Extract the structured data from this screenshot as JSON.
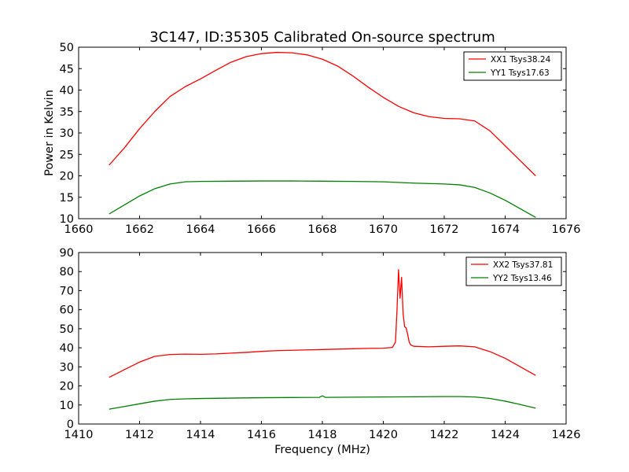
{
  "figure": {
    "title": "3C147, ID:35305 Calibrated On-source spectrum"
  },
  "chart_data": [
    {
      "type": "line",
      "title": "3C147, ID:35305 Calibrated On-source spectrum",
      "xlabel": "",
      "ylabel": "Power in Kelvin",
      "xlim": [
        1660,
        1676
      ],
      "ylim": [
        10,
        50
      ],
      "xticks": [
        1660,
        1662,
        1664,
        1666,
        1668,
        1670,
        1672,
        1674,
        1676
      ],
      "yticks": [
        10,
        15,
        20,
        25,
        30,
        35,
        40,
        45,
        50
      ],
      "legend_position": "top-right",
      "grid": false,
      "series": [
        {
          "name": "XX1 Tsys38.24",
          "color": "#ff0000",
          "x": [
            1661.0,
            1661.5,
            1662.0,
            1662.5,
            1663.0,
            1663.5,
            1664.0,
            1664.5,
            1665.0,
            1665.5,
            1666.0,
            1666.5,
            1667.0,
            1667.5,
            1668.0,
            1668.5,
            1669.0,
            1669.5,
            1670.0,
            1670.5,
            1671.0,
            1671.5,
            1672.0,
            1672.5,
            1673.0,
            1673.5,
            1674.0,
            1674.5,
            1675.0
          ],
          "y": [
            22.5,
            26.5,
            31.0,
            35.0,
            38.5,
            40.8,
            42.6,
            44.6,
            46.5,
            47.8,
            48.5,
            48.8,
            48.7,
            48.2,
            47.2,
            45.6,
            43.3,
            40.7,
            38.3,
            36.2,
            34.7,
            33.8,
            33.4,
            33.3,
            32.8,
            30.5,
            27.0,
            23.5,
            20.0
          ]
        },
        {
          "name": "YY1 Tsys17.63",
          "color": "#008000",
          "x": [
            1661.0,
            1661.5,
            1662.0,
            1662.5,
            1663.0,
            1663.5,
            1664.0,
            1665.0,
            1666.0,
            1667.0,
            1668.0,
            1669.0,
            1670.0,
            1671.0,
            1672.0,
            1672.5,
            1673.0,
            1673.5,
            1674.0,
            1674.5,
            1675.0
          ],
          "y": [
            11.1,
            13.2,
            15.3,
            17.0,
            18.1,
            18.6,
            18.7,
            18.75,
            18.8,
            18.8,
            18.75,
            18.7,
            18.6,
            18.3,
            18.1,
            17.9,
            17.3,
            16.0,
            14.3,
            12.3,
            10.3
          ]
        }
      ]
    },
    {
      "type": "line",
      "title": "",
      "xlabel": "Frequency (MHz)",
      "ylabel": "",
      "xlim": [
        1410,
        1426
      ],
      "ylim": [
        0,
        90
      ],
      "xticks": [
        1410,
        1412,
        1414,
        1416,
        1418,
        1420,
        1422,
        1424,
        1426
      ],
      "yticks": [
        0,
        10,
        20,
        30,
        40,
        50,
        60,
        70,
        80,
        90
      ],
      "legend_position": "top-right",
      "grid": false,
      "series": [
        {
          "name": "XX2 Tsys37.81",
          "color": "#ff0000",
          "x": [
            1411.0,
            1411.5,
            1412.0,
            1412.5,
            1413.0,
            1413.5,
            1414.0,
            1414.5,
            1415.0,
            1415.5,
            1416.0,
            1416.5,
            1417.0,
            1417.5,
            1418.0,
            1418.5,
            1419.0,
            1419.5,
            1420.0,
            1420.3,
            1420.4,
            1420.45,
            1420.5,
            1420.55,
            1420.6,
            1420.65,
            1420.7,
            1420.75,
            1420.8,
            1420.85,
            1420.9,
            1421.0,
            1421.5,
            1422.0,
            1422.5,
            1423.0,
            1423.5,
            1424.0,
            1424.5,
            1425.0
          ],
          "y": [
            24.5,
            28.5,
            32.5,
            35.5,
            36.5,
            36.7,
            36.6,
            36.8,
            37.2,
            37.6,
            38.1,
            38.5,
            38.7,
            38.9,
            39.1,
            39.3,
            39.5,
            39.7,
            39.8,
            40.2,
            43.0,
            60.0,
            81.0,
            66.0,
            77.0,
            58.0,
            51.0,
            50.5,
            47.0,
            43.0,
            41.5,
            40.8,
            40.5,
            40.8,
            41.0,
            40.5,
            38.0,
            34.5,
            30.0,
            25.5
          ]
        },
        {
          "name": "YY2 Tsys13.46",
          "color": "#008000",
          "x": [
            1411.0,
            1411.5,
            1412.0,
            1412.5,
            1413.0,
            1413.5,
            1414.0,
            1415.0,
            1416.0,
            1417.0,
            1417.9,
            1418.0,
            1418.1,
            1419.0,
            1420.0,
            1421.0,
            1422.0,
            1422.5,
            1423.0,
            1423.5,
            1424.0,
            1424.5,
            1425.0
          ],
          "y": [
            7.8,
            9.2,
            10.6,
            12.0,
            12.9,
            13.2,
            13.4,
            13.6,
            13.8,
            13.9,
            14.0,
            14.8,
            14.0,
            14.1,
            14.2,
            14.3,
            14.4,
            14.4,
            14.2,
            13.4,
            12.0,
            10.2,
            8.3
          ]
        }
      ]
    }
  ]
}
